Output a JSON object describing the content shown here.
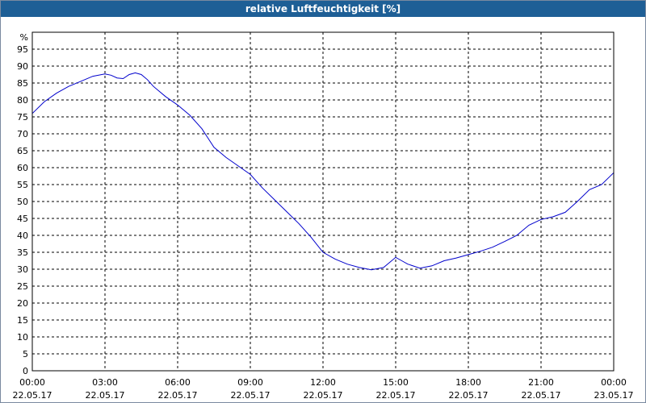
{
  "chart_data": {
    "type": "line",
    "title": "relative Luftfeuchtigkeit [%]",
    "ylabel": "%",
    "xlabel": "",
    "ylim": [
      0,
      100
    ],
    "yticks": [
      0,
      5,
      10,
      15,
      20,
      25,
      30,
      35,
      40,
      45,
      50,
      55,
      60,
      65,
      70,
      75,
      80,
      85,
      90,
      95
    ],
    "xlim_hours": [
      0,
      24
    ],
    "xticks": [
      {
        "time": "00:00",
        "date": "22.05.17"
      },
      {
        "time": "03:00",
        "date": "22.05.17"
      },
      {
        "time": "06:00",
        "date": "22.05.17"
      },
      {
        "time": "09:00",
        "date": "22.05.17"
      },
      {
        "time": "12:00",
        "date": "22.05.17"
      },
      {
        "time": "15:00",
        "date": "22.05.17"
      },
      {
        "time": "18:00",
        "date": "22.05.17"
      },
      {
        "time": "21:00",
        "date": "22.05.17"
      },
      {
        "time": "00:00",
        "date": "23.05.17"
      }
    ],
    "grid": true,
    "line_color": "#0000cc",
    "series": [
      {
        "x_hours": [
          0,
          0.5,
          1,
          1.5,
          2,
          2.5,
          3,
          3.25,
          3.5,
          3.75,
          4,
          4.25,
          4.5,
          4.75,
          5,
          5.5,
          6,
          6.5,
          7,
          7.5,
          8,
          8.5,
          9,
          9.5,
          10,
          10.5,
          11,
          11.5,
          12,
          12.5,
          13,
          13.5,
          14,
          14.5,
          15,
          15.25,
          15.5,
          16,
          16.5,
          17,
          17.5,
          18,
          18.5,
          19,
          19.5,
          20,
          20.5,
          21,
          21.5,
          22,
          22.5,
          23,
          23.5,
          24
        ],
        "values": [
          76,
          79.5,
          82,
          84,
          85.5,
          87,
          87.7,
          87.3,
          86.5,
          86.3,
          87.5,
          88,
          87.5,
          86,
          84,
          81,
          78.5,
          75.5,
          71.5,
          66,
          63,
          60.5,
          58,
          54,
          50.5,
          47,
          43.5,
          39.5,
          35,
          33,
          31.5,
          30.5,
          29.8,
          30.5,
          33.5,
          32.5,
          31.5,
          30.3,
          31,
          32.5,
          33.3,
          34.3,
          35.3,
          36.5,
          38.2,
          40,
          43,
          44.7,
          45.5,
          46.8,
          50,
          53.5,
          55,
          58.5
        ]
      }
    ]
  }
}
